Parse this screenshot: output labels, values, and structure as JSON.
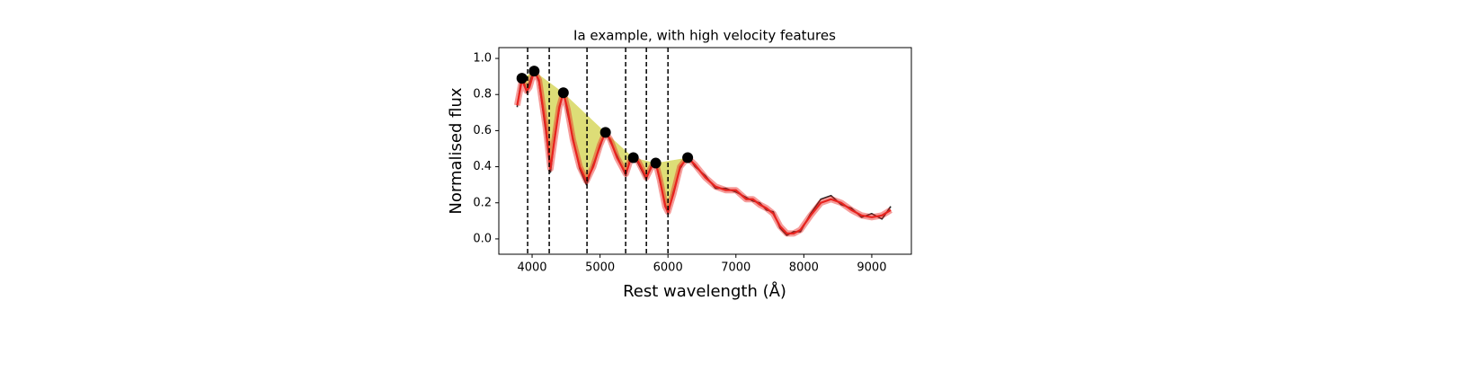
{
  "chart_data": {
    "type": "line",
    "title": "Ia example, with high velocity features",
    "xlabel": "Rest wavelength (Å)",
    "ylabel": "Normalised flux",
    "x": [
      3780,
      3850,
      3920,
      3960,
      4030,
      4100,
      4200,
      4270,
      4330,
      4400,
      4460,
      4520,
      4600,
      4700,
      4800,
      4900,
      5000,
      5080,
      5150,
      5250,
      5380,
      5440,
      5490,
      5560,
      5680,
      5760,
      5820,
      5880,
      5960,
      6000,
      6080,
      6180,
      6290,
      6400,
      6550,
      6700,
      6850,
      7000,
      7150,
      7250,
      7350,
      7450,
      7550,
      7650,
      7750,
      7850,
      7950,
      8100,
      8250,
      8400,
      8550,
      8700,
      8850,
      9000,
      9150,
      9280
    ],
    "series": [
      {
        "color": "#222222",
        "values": [
          0.73,
          0.91,
          0.81,
          0.86,
          0.94,
          0.87,
          0.6,
          0.37,
          0.56,
          0.72,
          0.82,
          0.7,
          0.56,
          0.39,
          0.3,
          0.41,
          0.51,
          0.6,
          0.54,
          0.46,
          0.35,
          0.44,
          0.46,
          0.42,
          0.33,
          0.41,
          0.43,
          0.32,
          0.19,
          0.14,
          0.26,
          0.39,
          0.46,
          0.4,
          0.35,
          0.28,
          0.28,
          0.26,
          0.23,
          0.21,
          0.2,
          0.16,
          0.15,
          0.06,
          0.02,
          0.04,
          0.04,
          0.14,
          0.22,
          0.24,
          0.19,
          0.17,
          0.12,
          0.14,
          0.11,
          0.18
        ]
      },
      {
        "color": "#e8231e",
        "values": [
          0.74,
          0.88,
          0.82,
          0.84,
          0.93,
          0.88,
          0.62,
          0.39,
          0.55,
          0.73,
          0.81,
          0.72,
          0.55,
          0.4,
          0.32,
          0.4,
          0.52,
          0.59,
          0.55,
          0.45,
          0.36,
          0.43,
          0.45,
          0.43,
          0.34,
          0.4,
          0.42,
          0.33,
          0.18,
          0.15,
          0.25,
          0.4,
          0.45,
          0.41,
          0.34,
          0.29,
          0.27,
          0.27,
          0.22,
          0.22,
          0.19,
          0.17,
          0.14,
          0.07,
          0.03,
          0.03,
          0.05,
          0.13,
          0.2,
          0.22,
          0.2,
          0.16,
          0.13,
          0.12,
          0.13,
          0.16
        ]
      }
    ],
    "maxima": {
      "color": "#000000",
      "x": [
        3850,
        4030,
        4460,
        5080,
        5490,
        5820,
        6290
      ],
      "values": [
        0.89,
        0.93,
        0.81,
        0.59,
        0.45,
        0.42,
        0.45
      ]
    },
    "fill_color": "#d4d455",
    "vlines": [
      3934,
      4252,
      4808,
      5377,
      5682,
      6000
    ],
    "xlim": [
      3510,
      9583
    ],
    "ylim": [
      -0.085,
      1.06
    ],
    "xticks": [
      4000,
      5000,
      6000,
      7000,
      8000,
      9000
    ],
    "yticks": [
      {
        "value": 0.0,
        "label": "0.0"
      },
      0.2,
      0.4,
      0.6,
      0.8,
      {
        "value": 1.0,
        "label": "1.0"
      }
    ]
  }
}
